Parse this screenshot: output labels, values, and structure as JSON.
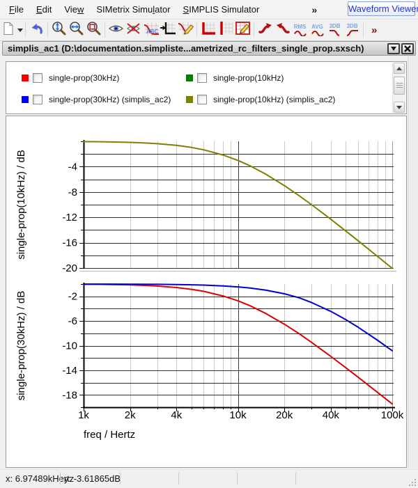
{
  "menu": {
    "items": [
      {
        "label": "File",
        "accel": 0
      },
      {
        "label": "Edit",
        "accel": 0
      },
      {
        "label": "View",
        "accel": 3
      },
      {
        "label": "SIMetrix Simulator",
        "accel": 13
      },
      {
        "label": "SIMPLIS Simulator",
        "accel": 0
      }
    ],
    "overflow": "»",
    "mode_selector": "Waveform Viewer"
  },
  "toolbar": {
    "abc": "ABC",
    "rms": "RMS",
    "avg": "AVG",
    "db3_low": "3DB",
    "db3_high": "3DB",
    "more": "»"
  },
  "titlebar": {
    "title": "simplis_ac1 (D:\\documentation.simpliste...ametrized_rc_filters_single_prop.sxsch)"
  },
  "legend": {
    "items": [
      {
        "label": "single-prop(30kHz)",
        "color": "#ff0000",
        "checked": false
      },
      {
        "label": "single-prop(30kHz) (simplis_ac2)",
        "color": "#0000ff",
        "checked": false
      },
      {
        "label": "single-prop(10kHz)",
        "color": "#008000",
        "checked": false
      },
      {
        "label": "single-prop(10kHz) (simplis_ac2)",
        "color": "#808000",
        "checked": false
      }
    ]
  },
  "chart_data": {
    "type": "line",
    "x_scale": "log",
    "x_range": [
      1000,
      100000
    ],
    "xlabel": "freq / Hertz",
    "x_ticks": [
      {
        "v": 1000,
        "label": "1k"
      },
      {
        "v": 2000,
        "label": "2k"
      },
      {
        "v": 4000,
        "label": "4k"
      },
      {
        "v": 10000,
        "label": "10k"
      },
      {
        "v": 20000,
        "label": "20k"
      },
      {
        "v": 40000,
        "label": "40k"
      },
      {
        "v": 100000,
        "label": "100k"
      }
    ],
    "grid": true,
    "panels": [
      {
        "ylabel": "single-prop(10kHz) / dB",
        "ylim": [
          -20,
          0
        ],
        "y_grid_step": 2,
        "y_labeled_ticks": [
          -4,
          -8,
          -12,
          -16,
          -20
        ],
        "series": [
          {
            "name": "single-prop(10kHz) (simplis_ac2)",
            "color": "#7f7f00",
            "points": [
              [
                1000,
                -0.04
              ],
              [
                1200,
                -0.06
              ],
              [
                1500,
                -0.1
              ],
              [
                2000,
                -0.17
              ],
              [
                2500,
                -0.26
              ],
              [
                3000,
                -0.37
              ],
              [
                4000,
                -0.64
              ],
              [
                5000,
                -0.97
              ],
              [
                6000,
                -1.34
              ],
              [
                8000,
                -2.15
              ],
              [
                10000,
                -3.01
              ],
              [
                12000,
                -3.87
              ],
              [
                15000,
                -5.12
              ],
              [
                20000,
                -6.99
              ],
              [
                25000,
                -8.6
              ],
              [
                30000,
                -10.0
              ],
              [
                40000,
                -12.3
              ],
              [
                50000,
                -14.15
              ],
              [
                60000,
                -15.68
              ],
              [
                80000,
                -18.13
              ],
              [
                100000,
                -20.04
              ]
            ]
          }
        ]
      },
      {
        "ylabel": "single-prop(30kHz) / dB",
        "ylim": [
          -20,
          0
        ],
        "y_grid_step": 2,
        "y_labeled_ticks": [
          -2,
          -6,
          -10,
          -14,
          -18
        ],
        "series": [
          {
            "name": "single-prop(30kHz)",
            "color": "#dd0000",
            "points": [
              [
                1000,
                -0.04
              ],
              [
                1200,
                -0.05
              ],
              [
                1500,
                -0.08
              ],
              [
                2000,
                -0.15
              ],
              [
                2500,
                -0.23
              ],
              [
                3000,
                -0.33
              ],
              [
                4000,
                -0.57
              ],
              [
                5000,
                -0.86
              ],
              [
                6000,
                -1.19
              ],
              [
                8000,
                -1.93
              ],
              [
                10000,
                -2.72
              ],
              [
                12000,
                -3.53
              ],
              [
                15000,
                -4.72
              ],
              [
                20000,
                -6.52
              ],
              [
                25000,
                -8.08
              ],
              [
                30000,
                -9.47
              ],
              [
                40000,
                -11.75
              ],
              [
                50000,
                -13.58
              ],
              [
                60000,
                -15.11
              ],
              [
                80000,
                -17.55
              ],
              [
                100000,
                -19.46
              ]
            ]
          },
          {
            "name": "single-prop(30kHz) (simplis_ac2)",
            "color": "#0000cc",
            "points": [
              [
                1000,
                -0.01
              ],
              [
                1500,
                -0.01
              ],
              [
                2000,
                -0.02
              ],
              [
                3000,
                -0.04
              ],
              [
                4000,
                -0.08
              ],
              [
                5000,
                -0.12
              ],
              [
                6000,
                -0.17
              ],
              [
                8000,
                -0.3
              ],
              [
                10000,
                -0.46
              ],
              [
                12000,
                -0.65
              ],
              [
                15000,
                -0.97
              ],
              [
                20000,
                -1.58
              ],
              [
                25000,
                -2.24
              ],
              [
                30000,
                -3.01
              ],
              [
                40000,
                -4.44
              ],
              [
                50000,
                -5.77
              ],
              [
                60000,
                -6.99
              ],
              [
                80000,
                -9.1
              ],
              [
                100000,
                -10.83
              ]
            ]
          }
        ]
      }
    ]
  },
  "status": {
    "x": "x: 6.97489kHertz",
    "y": "y: -3.61865dB"
  }
}
